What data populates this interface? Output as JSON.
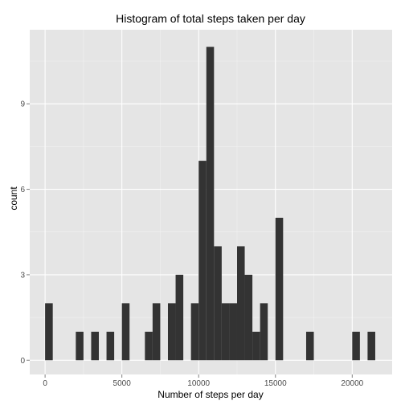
{
  "chart_data": {
    "type": "bar",
    "title": "Histogram of total steps taken per day",
    "xlabel": "Number of steps per day",
    "ylabel": "count",
    "xlim": [
      -1000,
      22600
    ],
    "ylim": [
      -0.5,
      11.6
    ],
    "x_ticks": [
      0,
      5000,
      10000,
      15000,
      20000
    ],
    "x_tick_labels": [
      "0",
      "5000",
      "10000",
      "15000",
      "20000"
    ],
    "y_ticks": [
      0,
      3,
      6,
      9
    ],
    "y_tick_labels": [
      "0",
      "3",
      "6",
      "9"
    ],
    "bin_width": 500,
    "bins_start": [
      0,
      2000,
      3000,
      4000,
      5000,
      6500,
      7000,
      8000,
      8500,
      9500,
      10000,
      10500,
      11000,
      11500,
      12000,
      12500,
      13000,
      13500,
      14000,
      15000,
      17000,
      20000,
      21000
    ],
    "counts": [
      2,
      1,
      1,
      1,
      2,
      1,
      2,
      2,
      3,
      2,
      7,
      11,
      4,
      2,
      2,
      4,
      3,
      1,
      2,
      5,
      1,
      1,
      1
    ],
    "grid": true,
    "colors": {
      "panel": "#e5e5e5",
      "grid_major": "#ffffff",
      "grid_minor": "#f2f2f2",
      "bar": "#333333"
    }
  }
}
